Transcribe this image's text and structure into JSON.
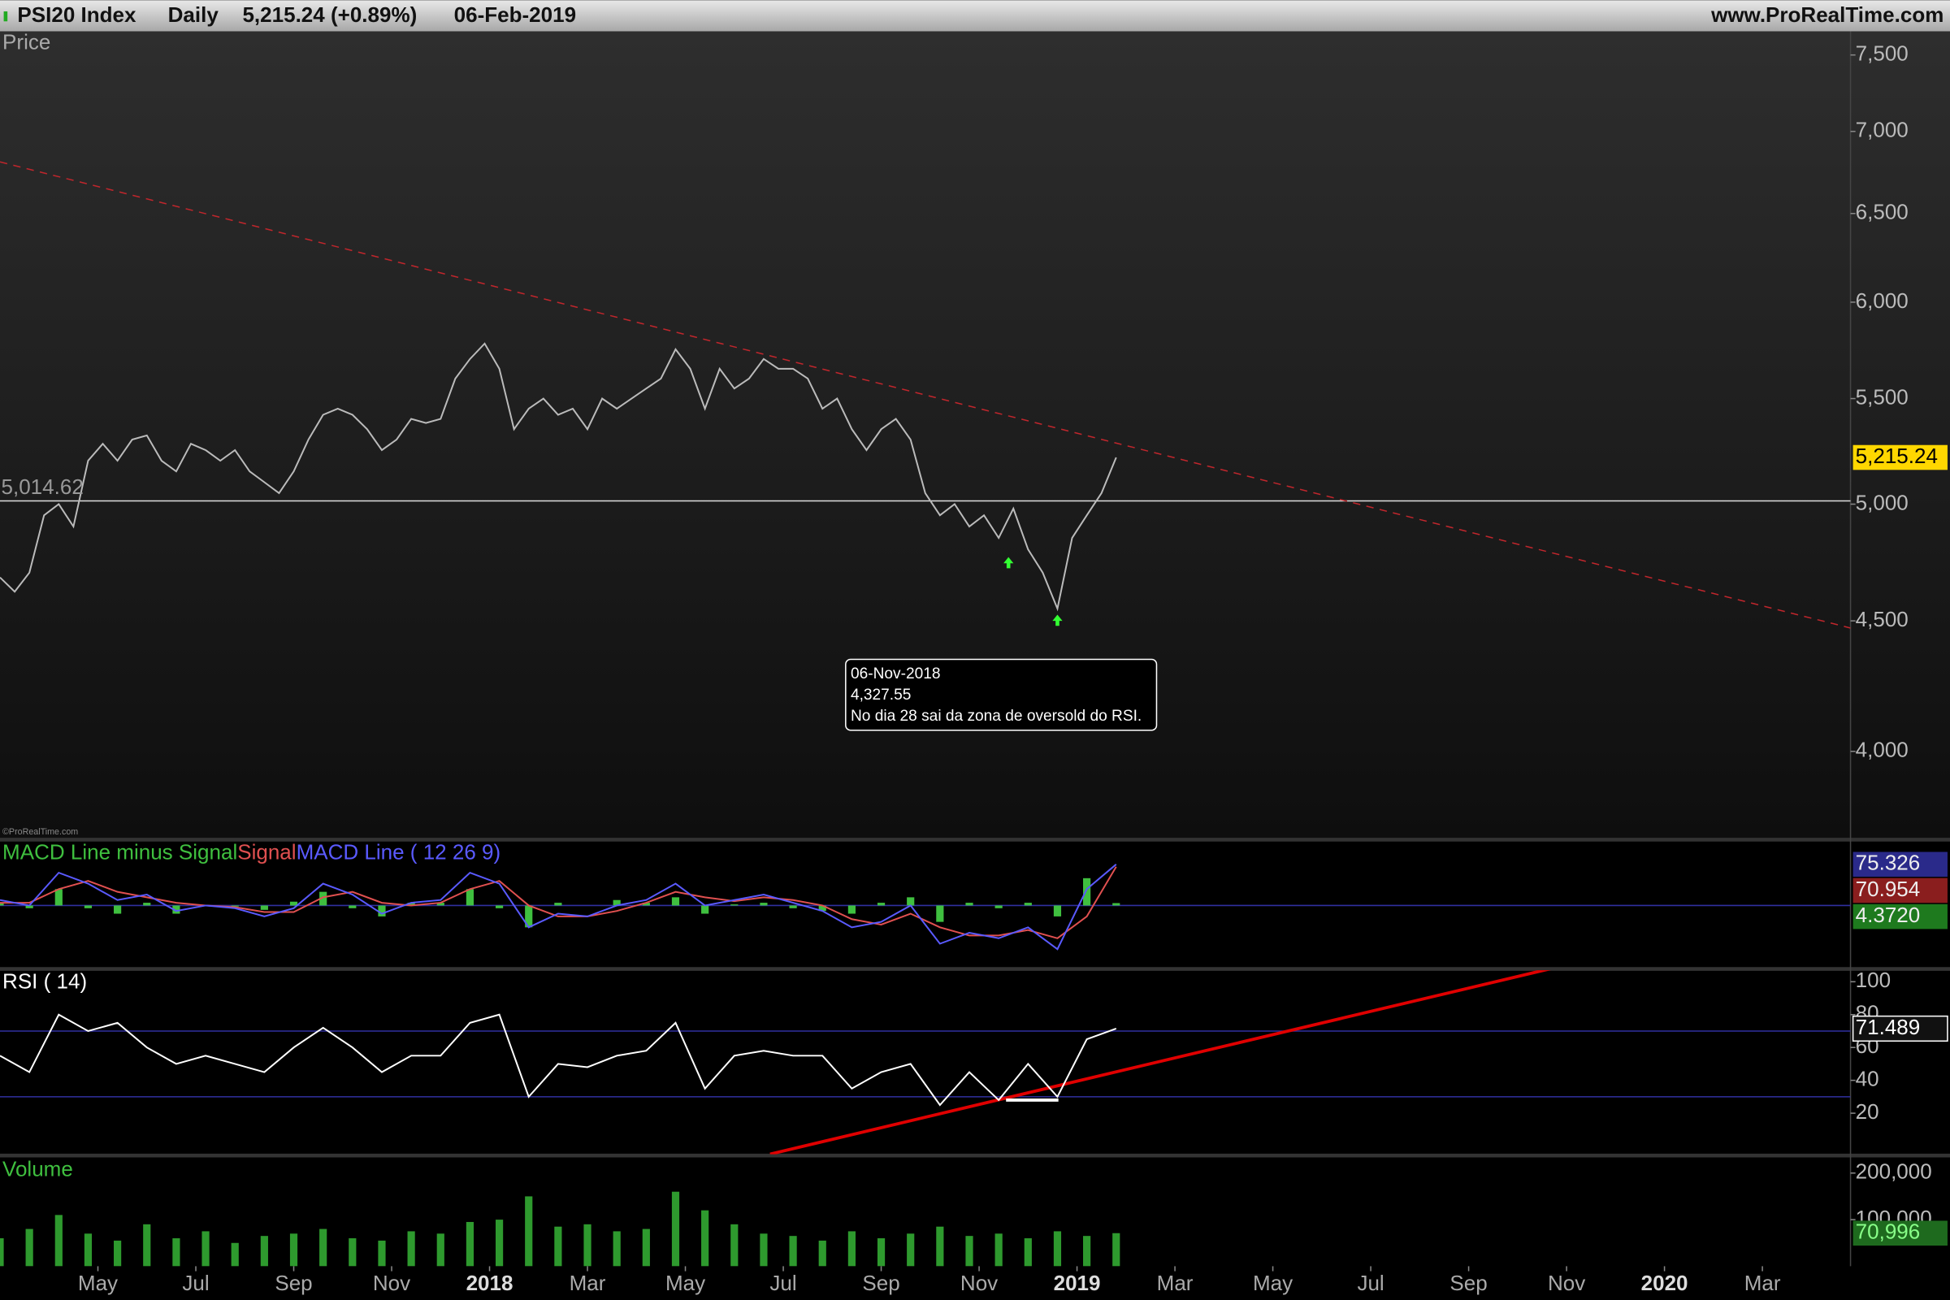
{
  "header": {
    "title": "PSI20 Index",
    "period": "Daily",
    "quote": "5,215.24 (+0.89%)",
    "date": "06-Feb-2019",
    "site": "www.ProRealTime.com",
    "watermark": "©ProRealTime.com"
  },
  "chart_data": [
    {
      "type": "line",
      "title": "Price",
      "log": true,
      "xlim": [
        3,
        40.8
      ],
      "ylim": [
        3706,
        7662
      ],
      "yticks": [
        {
          "value": 4000,
          "label": "4,000"
        },
        {
          "value": 4500,
          "label": "4,500"
        },
        {
          "value": 5000,
          "label": "5,000"
        },
        {
          "value": 5500,
          "label": "5,500"
        },
        {
          "value": 6000,
          "label": "6,000"
        },
        {
          "value": 6500,
          "label": "6,500"
        },
        {
          "value": 7000,
          "label": "7,000"
        },
        {
          "value": 7500,
          "label": "7,500"
        }
      ],
      "x": [
        3,
        3.3,
        3.6,
        3.9,
        4.2,
        4.5,
        4.8,
        5.1,
        5.4,
        5.7,
        6,
        6.3,
        6.6,
        6.9,
        7.2,
        7.5,
        7.8,
        8.1,
        8.4,
        8.7,
        9,
        9.3,
        9.6,
        9.9,
        10.2,
        10.5,
        10.8,
        11.1,
        11.4,
        11.7,
        12,
        12.3,
        12.6,
        12.9,
        13.2,
        13.5,
        13.8,
        14.1,
        14.4,
        14.7,
        15,
        15.3,
        15.6,
        15.9,
        16.2,
        16.5,
        16.8,
        17.1,
        17.4,
        17.7,
        18,
        18.3,
        18.6,
        18.9,
        19.2,
        19.5,
        19.8,
        20.1,
        20.4,
        20.7,
        21,
        21.3,
        21.6,
        21.9,
        22.2,
        22.5,
        22.8,
        23.1,
        23.4,
        23.7,
        24,
        24.3,
        24.6,
        24.9,
        25.2,
        25.5,
        25.8
      ],
      "series": [
        {
          "color": "#bbbbbb",
          "last_label": "5,215.24",
          "label_color": "#ffd700",
          "values": [
            4680,
            4620,
            4700,
            4950,
            5000,
            4900,
            5200,
            5280,
            5200,
            5300,
            5320,
            5200,
            5150,
            5280,
            5250,
            5200,
            5250,
            5150,
            5100,
            5050,
            5150,
            5300,
            5420,
            5450,
            5420,
            5350,
            5250,
            5300,
            5400,
            5380,
            5400,
            5600,
            5700,
            5780,
            5650,
            5350,
            5450,
            5500,
            5420,
            5450,
            5350,
            5500,
            5450,
            5500,
            5550,
            5600,
            5750,
            5650,
            5450,
            5650,
            5550,
            5600,
            5700,
            5650,
            5650,
            5600,
            5450,
            5500,
            5350,
            5250,
            5350,
            5400,
            5300,
            5050,
            4950,
            5000,
            4900,
            4950,
            4850,
            4980,
            4800,
            4700,
            4550,
            4850,
            4950,
            5050,
            5215.24
          ]
        }
      ],
      "level": {
        "value": 5014.62,
        "label": "5,014.62"
      },
      "trendlines": [
        {
          "x": [
            3,
            40.8
          ],
          "y": [
            6810,
            4471
          ],
          "color": "#c0262c",
          "dashed": true
        }
      ],
      "arrows": [
        {
          "x": 23.6,
          "y": 4740,
          "color": "#33ff33"
        },
        {
          "x": 24.6,
          "y": 4500,
          "color": "#33ff33"
        }
      ],
      "annotation": [
        "06-Nov-2018",
        "4,327.55",
        "No dia 28 sai da zona de oversold do RSI."
      ]
    },
    {
      "type": "line",
      "xlim": [
        3,
        40.8
      ],
      "ylim": [
        -114,
        116
      ],
      "x": [
        3,
        3.6,
        4.2,
        4.8,
        5.4,
        6,
        6.6,
        7.2,
        7.8,
        8.4,
        9,
        9.6,
        10.2,
        10.8,
        11.4,
        12,
        12.6,
        13.2,
        13.8,
        14.4,
        15,
        15.6,
        16.2,
        16.8,
        17.4,
        18,
        18.6,
        19.2,
        19.8,
        20.4,
        21,
        21.6,
        22.2,
        22.8,
        23.4,
        24,
        24.6,
        25.2,
        25.8
      ],
      "series": [
        {
          "name": "MACD Line minus Signal",
          "color": "#3fbf3f",
          "style": "bars",
          "last_label": "4.3720",
          "label_color": "#1e7a1e",
          "values": [
            5,
            -5,
            30,
            -5,
            -15,
            5,
            -15,
            0,
            -2,
            -8,
            7,
            25,
            -5,
            -20,
            5,
            5,
            30,
            -5,
            -40,
            5,
            0,
            10,
            5,
            15,
            -15,
            2,
            5,
            -5,
            -10,
            -15,
            5,
            15,
            -30,
            5,
            -5,
            5,
            -20,
            50,
            4.372
          ]
        },
        {
          "name": "Signal",
          "color": "#e05050",
          "last_label": "70.954",
          "label_color": "#8a1e1e",
          "values": [
            5,
            5,
            30,
            45,
            25,
            15,
            5,
            0,
            -3,
            -12,
            -12,
            15,
            25,
            5,
            0,
            5,
            30,
            45,
            0,
            -20,
            -20,
            -10,
            5,
            25,
            15,
            8,
            15,
            10,
            0,
            -25,
            -35,
            -15,
            -40,
            -55,
            -55,
            -45,
            -60,
            -20,
            70.954
          ]
        },
        {
          "name": "MACD Line ( 12 26 9)",
          "color": "#5a5aff",
          "last_label": "75.326",
          "label_color": "#2a2a8a",
          "values": [
            10,
            0,
            60,
            40,
            10,
            20,
            -10,
            0,
            -5,
            -20,
            -5,
            40,
            20,
            -15,
            5,
            10,
            60,
            40,
            -40,
            -15,
            -20,
            0,
            10,
            40,
            0,
            10,
            20,
            5,
            -10,
            -40,
            -30,
            0,
            -70,
            -50,
            -60,
            -40,
            -80,
            30,
            75.326
          ]
        }
      ]
    },
    {
      "type": "line",
      "title": "RSI ( 14)",
      "xlim": [
        3,
        40.8
      ],
      "ylim": [
        -5,
        107
      ],
      "yticks": [
        20,
        40,
        60,
        80,
        100
      ],
      "levels": [
        30,
        70
      ],
      "x": [
        3,
        3.6,
        4.2,
        4.8,
        5.4,
        6,
        6.6,
        7.2,
        7.8,
        8.4,
        9,
        9.6,
        10.2,
        10.8,
        11.4,
        12,
        12.6,
        13.2,
        13.8,
        14.4,
        15,
        15.6,
        16.2,
        16.8,
        17.4,
        18,
        18.6,
        19.2,
        19.8,
        20.4,
        21,
        21.6,
        22.2,
        22.8,
        23.4,
        24,
        24.6,
        25.2,
        25.8
      ],
      "series": [
        {
          "color": "#ffffff",
          "last_label": "71.489",
          "label_color": "#111111",
          "values": [
            55,
            45,
            80,
            70,
            75,
            60,
            50,
            55,
            50,
            45,
            60,
            72,
            60,
            45,
            55,
            55,
            75,
            80,
            30,
            50,
            48,
            55,
            58,
            75,
            35,
            55,
            58,
            55,
            55,
            35,
            45,
            50,
            25,
            45,
            28,
            50,
            30,
            65,
            71.489
          ]
        }
      ],
      "trendlines": [
        {
          "x": [
            18.73,
            34.72
          ],
          "y": [
            -4.9,
            108.3
          ],
          "color": "#e00000"
        },
        {
          "x": [
            23.55,
            24.62
          ],
          "y": [
            28,
            28
          ],
          "color": "#ffffff"
        }
      ]
    },
    {
      "type": "bar",
      "title": "Volume",
      "xlim": [
        3,
        40.8
      ],
      "ylim": [
        0,
        235000
      ],
      "color": "#2e9a2e",
      "last_label": "70,996",
      "label_color": "#1e6a1e",
      "yticks": [
        {
          "value": 100000,
          "label": "100,000"
        },
        {
          "value": 200000,
          "label": "200,000"
        }
      ],
      "xticks": [
        {
          "value": 5,
          "label": "May"
        },
        {
          "value": 7,
          "label": "Jul"
        },
        {
          "value": 9,
          "label": "Sep"
        },
        {
          "value": 11,
          "label": "Nov"
        },
        {
          "value": 13,
          "label": "2018"
        },
        {
          "value": 15,
          "label": "Mar"
        },
        {
          "value": 17,
          "label": "May"
        },
        {
          "value": 19,
          "label": "Jul"
        },
        {
          "value": 21,
          "label": "Sep"
        },
        {
          "value": 23,
          "label": "Nov"
        },
        {
          "value": 25,
          "label": "2019"
        },
        {
          "value": 27,
          "label": "Mar"
        },
        {
          "value": 29,
          "label": "May"
        },
        {
          "value": 31,
          "label": "Jul"
        },
        {
          "value": 33,
          "label": "Sep"
        },
        {
          "value": 35,
          "label": "Nov"
        },
        {
          "value": 37,
          "label": "2020"
        },
        {
          "value": 39,
          "label": "Mar"
        }
      ],
      "x": [
        3,
        3.6,
        4.2,
        4.8,
        5.4,
        6,
        6.6,
        7.2,
        7.8,
        8.4,
        9,
        9.6,
        10.2,
        10.8,
        11.4,
        12,
        12.6,
        13.2,
        13.8,
        14.4,
        15,
        15.6,
        16.2,
        16.8,
        17.4,
        18,
        18.6,
        19.2,
        19.8,
        20.4,
        21,
        21.6,
        22.2,
        22.8,
        23.4,
        24,
        24.6,
        25.2,
        25.8
      ],
      "values": [
        60000,
        80000,
        110000,
        70000,
        55000,
        90000,
        60000,
        75000,
        50000,
        65000,
        70000,
        80000,
        60000,
        55000,
        75000,
        70000,
        95000,
        100000,
        150000,
        85000,
        90000,
        75000,
        80000,
        160000,
        120000,
        90000,
        70000,
        65000,
        55000,
        75000,
        60000,
        70000,
        85000,
        65000,
        70000,
        60000,
        75000,
        65000,
        70996
      ]
    }
  ]
}
